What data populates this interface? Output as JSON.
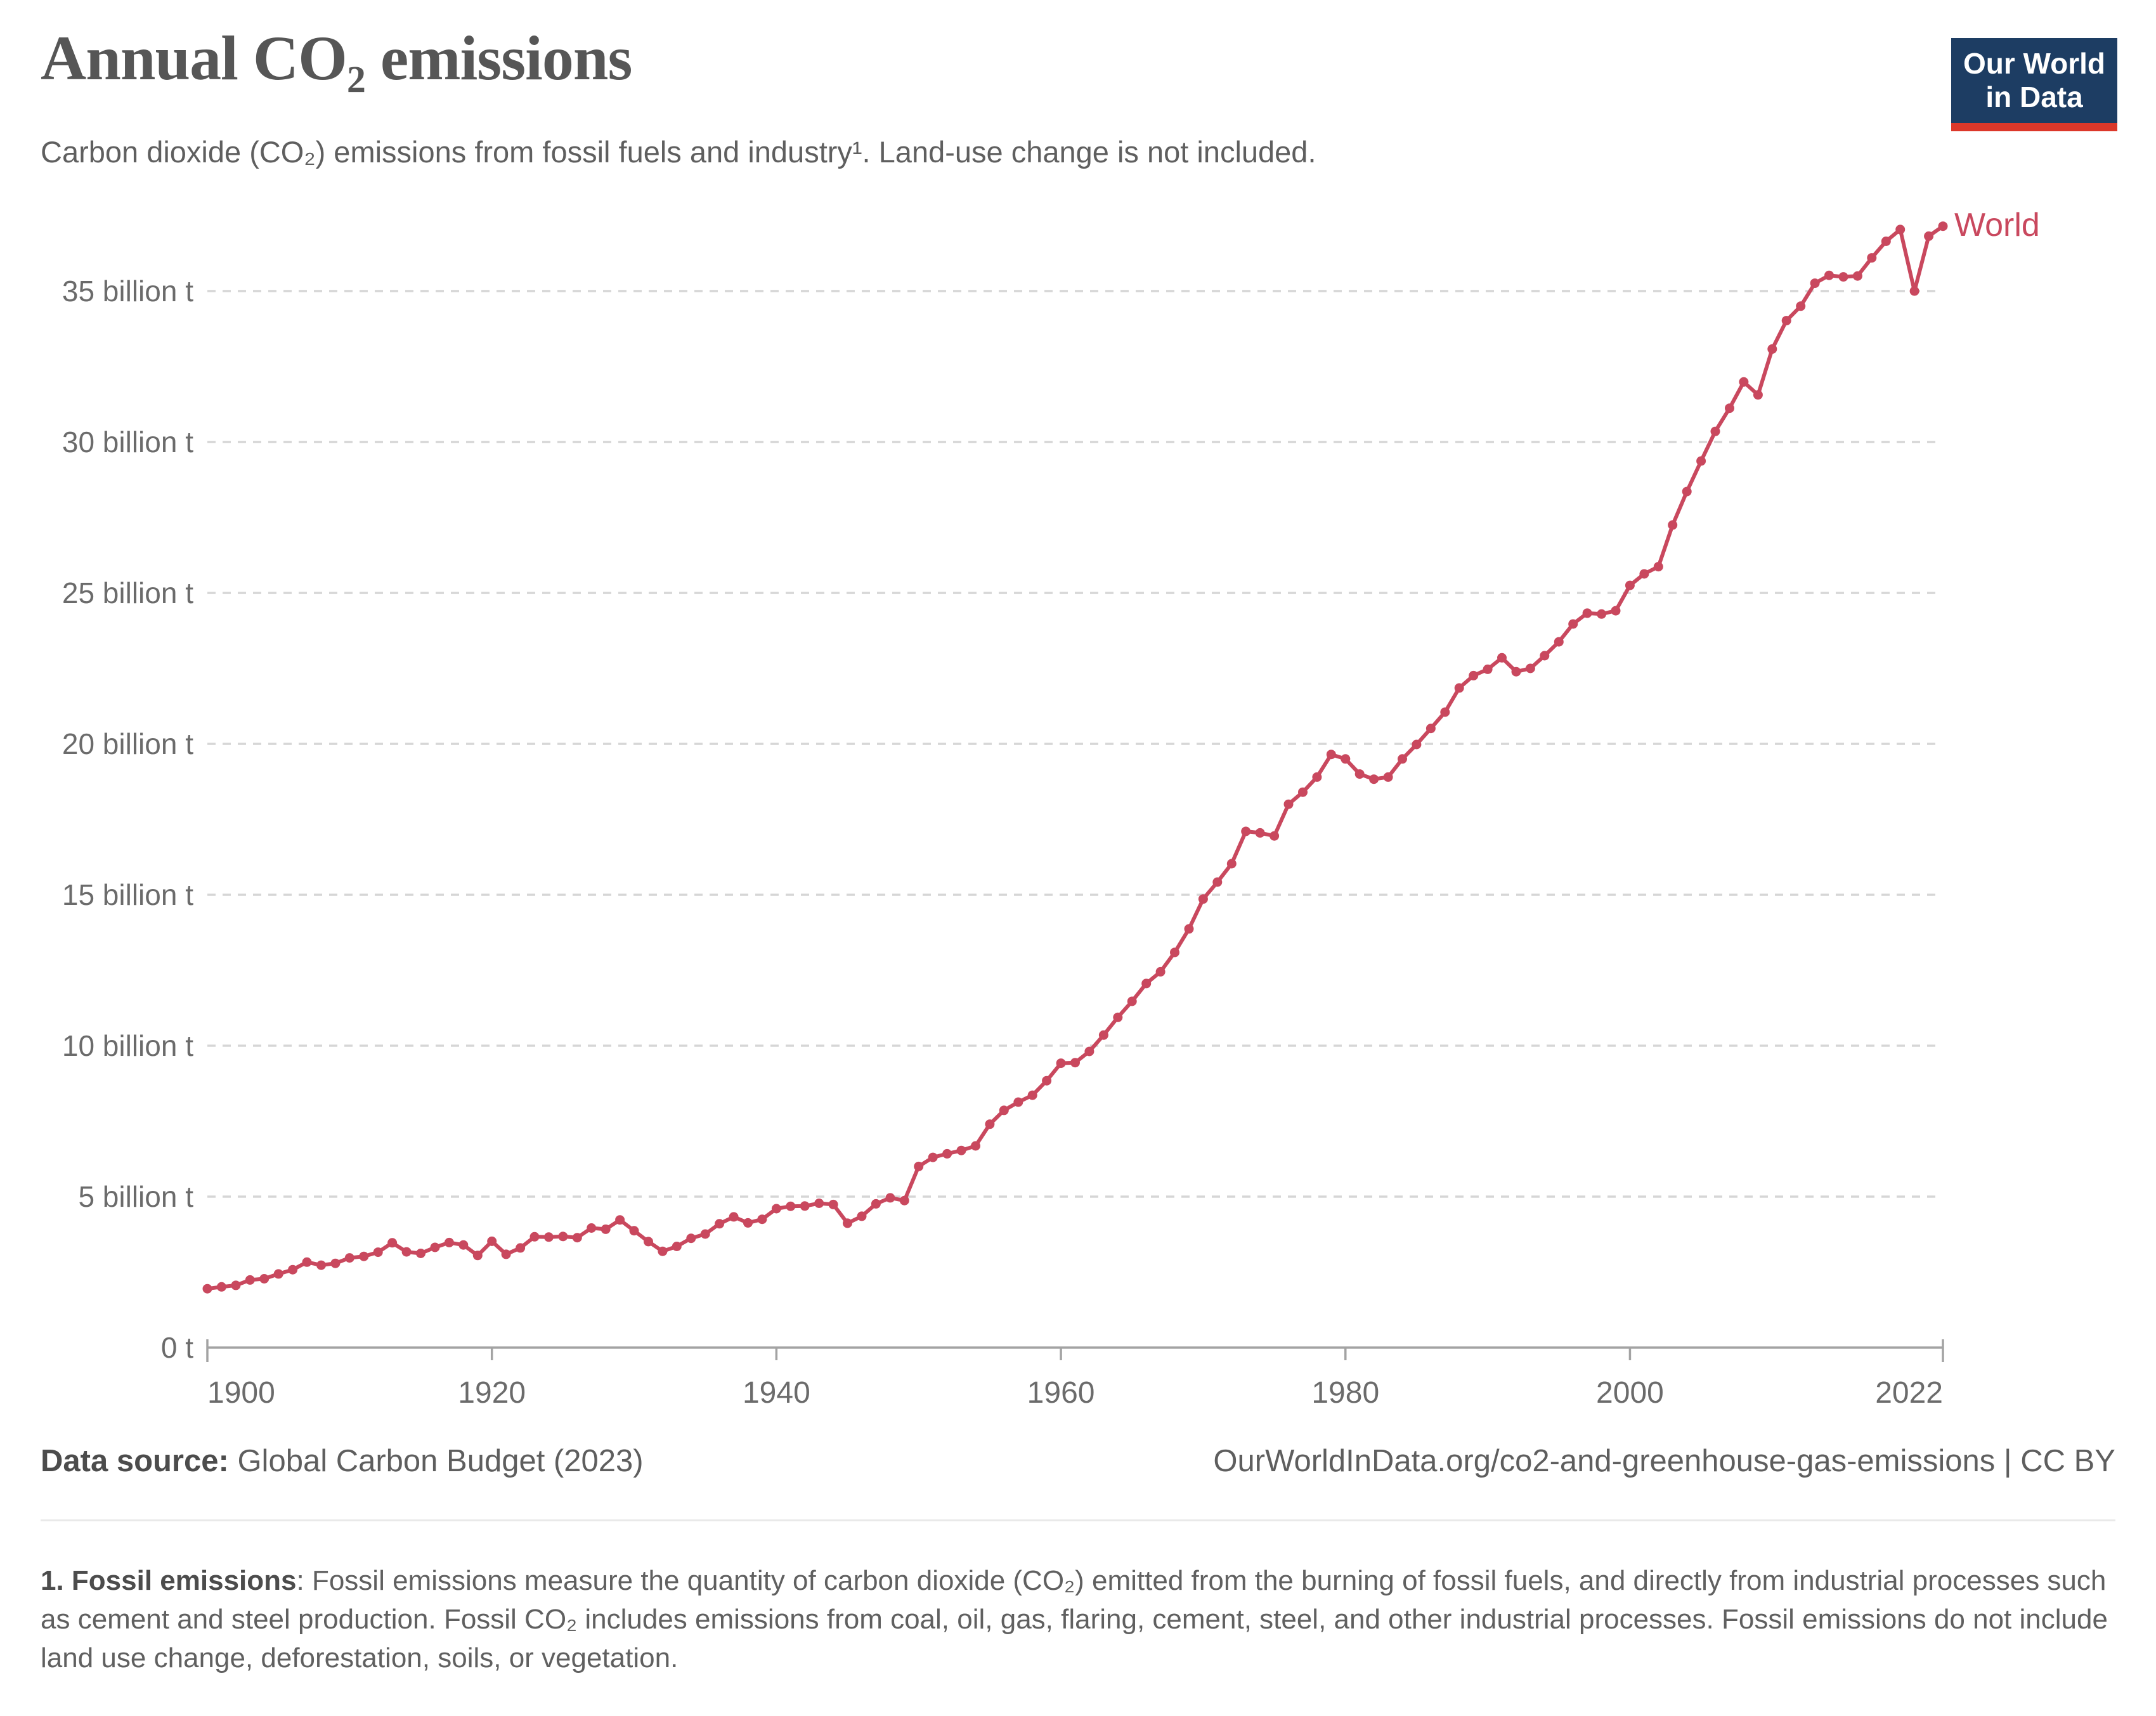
{
  "header": {
    "title": "Annual CO₂ emissions",
    "subtitle": "Carbon dioxide (CO₂) emissions from fossil fuels and industry¹. Land-use change is not included."
  },
  "logo": {
    "line1": "Our World",
    "line2": "in Data",
    "background_color": "#1d3d63",
    "accent_color": "#dc382a"
  },
  "chart_data": {
    "type": "line",
    "title": "Annual CO₂ emissions",
    "unit": "billion tonnes (t) of CO₂",
    "grid": "horizontal dashed",
    "legend_position": "end-of-line label",
    "xlim": [
      1900,
      2022
    ],
    "ylim": [
      0,
      37.5
    ],
    "x_ticks": [
      1900,
      1920,
      1940,
      1960,
      1980,
      2000,
      2022
    ],
    "y_ticks": [
      {
        "value": 0,
        "label": "0 t"
      },
      {
        "value": 5,
        "label": "5 billion t"
      },
      {
        "value": 10,
        "label": "10 billion t"
      },
      {
        "value": 15,
        "label": "15 billion t"
      },
      {
        "value": 20,
        "label": "20 billion t"
      },
      {
        "value": 25,
        "label": "25 billion t"
      },
      {
        "value": 30,
        "label": "30 billion t"
      },
      {
        "value": 35,
        "label": "35 billion t"
      }
    ],
    "series": [
      {
        "name": "World",
        "color": "#c9485e",
        "x": [
          1900,
          1901,
          1902,
          1903,
          1904,
          1905,
          1906,
          1907,
          1908,
          1909,
          1910,
          1911,
          1912,
          1913,
          1914,
          1915,
          1916,
          1917,
          1918,
          1919,
          1920,
          1921,
          1922,
          1923,
          1924,
          1925,
          1926,
          1927,
          1928,
          1929,
          1930,
          1931,
          1932,
          1933,
          1934,
          1935,
          1936,
          1937,
          1938,
          1939,
          1940,
          1941,
          1942,
          1943,
          1944,
          1945,
          1946,
          1947,
          1948,
          1949,
          1950,
          1951,
          1952,
          1953,
          1954,
          1955,
          1956,
          1957,
          1958,
          1959,
          1960,
          1961,
          1962,
          1963,
          1964,
          1965,
          1966,
          1967,
          1968,
          1969,
          1970,
          1971,
          1972,
          1973,
          1974,
          1975,
          1976,
          1977,
          1978,
          1979,
          1980,
          1981,
          1982,
          1983,
          1984,
          1985,
          1986,
          1987,
          1988,
          1989,
          1990,
          1991,
          1992,
          1993,
          1994,
          1995,
          1996,
          1997,
          1998,
          1999,
          2000,
          2001,
          2002,
          2003,
          2004,
          2005,
          2006,
          2007,
          2008,
          2009,
          2010,
          2011,
          2012,
          2013,
          2014,
          2015,
          2016,
          2017,
          2018,
          2019,
          2020,
          2021,
          2022
        ],
        "values": [
          1.95,
          2.01,
          2.06,
          2.24,
          2.28,
          2.44,
          2.58,
          2.83,
          2.73,
          2.79,
          2.97,
          3.02,
          3.16,
          3.47,
          3.17,
          3.12,
          3.32,
          3.48,
          3.4,
          3.05,
          3.52,
          3.09,
          3.3,
          3.67,
          3.66,
          3.68,
          3.64,
          3.96,
          3.92,
          4.23,
          3.87,
          3.51,
          3.19,
          3.35,
          3.62,
          3.76,
          4.1,
          4.33,
          4.13,
          4.25,
          4.6,
          4.68,
          4.69,
          4.78,
          4.74,
          4.12,
          4.35,
          4.76,
          4.96,
          4.87,
          6.0,
          6.3,
          6.42,
          6.53,
          6.68,
          7.4,
          7.86,
          8.13,
          8.36,
          8.84,
          9.42,
          9.44,
          9.81,
          10.35,
          10.94,
          11.47,
          12.06,
          12.45,
          13.09,
          13.87,
          14.86,
          15.42,
          16.03,
          17.1,
          17.05,
          16.95,
          18.0,
          18.4,
          18.9,
          19.65,
          19.5,
          19.0,
          18.83,
          18.9,
          19.5,
          19.98,
          20.51,
          21.05,
          21.85,
          22.26,
          22.47,
          22.85,
          22.39,
          22.5,
          22.92,
          23.38,
          23.97,
          24.33,
          24.3,
          24.41,
          25.25,
          25.63,
          25.87,
          27.25,
          28.36,
          29.37,
          30.35,
          31.12,
          31.99,
          31.56,
          33.08,
          34.02,
          34.5,
          35.26,
          35.52,
          35.47,
          35.5,
          36.1,
          36.65,
          37.04,
          35.0,
          36.82,
          37.15
        ]
      }
    ],
    "colors": {
      "gridline": "#d6d6d6",
      "axis": "#a3a3a3",
      "tick_text": "#6b6b6b"
    }
  },
  "footer": {
    "source_label": "Data source:",
    "source_value": " Global Carbon Budget (2023)",
    "link": "OurWorldInData.org/co2-and-greenhouse-gas-emissions | CC BY"
  },
  "note": {
    "lead": "1. Fossil emissions",
    "body": ": Fossil emissions measure the quantity of carbon dioxide (CO₂) emitted from the burning of fossil fuels, and directly from industrial processes such as cement and steel production. Fossil CO₂ includes emissions from coal, oil, gas, flaring, cement, steel, and other industrial processes. Fossil emissions do not include land use change, deforestation, soils, or vegetation."
  }
}
